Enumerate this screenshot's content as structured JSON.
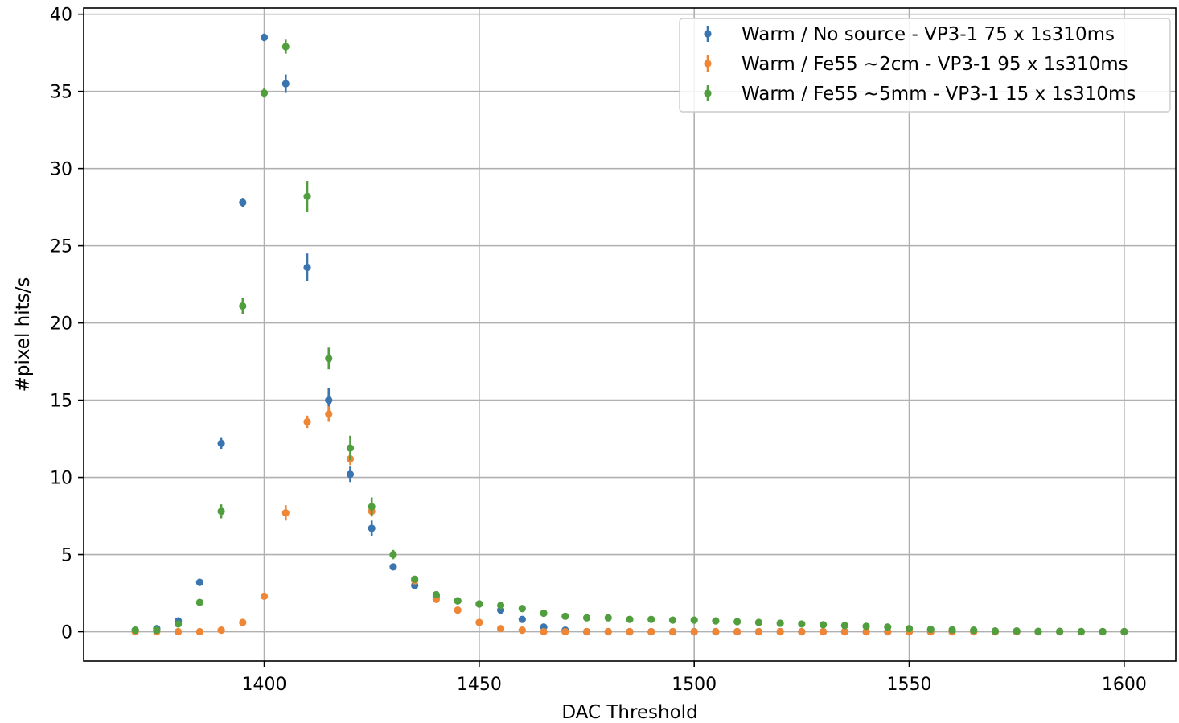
{
  "chart_data": {
    "type": "scatter",
    "xlabel": "DAC Threshold",
    "ylabel": "#pixel hits/s",
    "xlim": [
      1358,
      1612
    ],
    "ylim": [
      -1.9,
      40.4
    ],
    "xticks": [
      1400,
      1450,
      1500,
      1550,
      1600
    ],
    "yticks": [
      0,
      5,
      10,
      15,
      20,
      25,
      30,
      35,
      40
    ],
    "grid": true,
    "legend_position": "top-right",
    "x": [
      1370,
      1375,
      1380,
      1385,
      1390,
      1395,
      1400,
      1405,
      1410,
      1415,
      1420,
      1425,
      1430,
      1435,
      1440,
      1445,
      1450,
      1455,
      1460,
      1465,
      1470,
      1475,
      1480,
      1485,
      1490,
      1495,
      1500,
      1505,
      1510,
      1515,
      1520,
      1525,
      1530,
      1535,
      1540,
      1545,
      1550,
      1555,
      1560,
      1565,
      1570,
      1575,
      1580,
      1585,
      1590,
      1595,
      1600
    ],
    "series": [
      {
        "name": "Warm / No source - VP3-1 75 x 1s310ms",
        "color": "#3a75b0",
        "values": [
          0.1,
          0.2,
          0.7,
          3.2,
          12.2,
          27.8,
          38.5,
          35.5,
          23.6,
          15.0,
          10.2,
          6.7,
          4.2,
          3.0,
          2.3,
          2.0,
          1.8,
          1.4,
          0.8,
          0.3,
          0.1,
          0,
          0,
          0,
          0,
          0,
          0,
          0,
          0,
          0,
          0,
          0,
          0,
          0,
          0,
          0,
          0,
          0,
          0,
          0,
          0,
          0,
          0,
          0,
          0,
          0,
          0
        ],
        "errors": [
          0.05,
          0.1,
          0.15,
          0.2,
          0.35,
          0.3,
          0.25,
          0.6,
          0.9,
          0.8,
          0.5,
          0.5,
          0.2,
          0.2,
          0.15,
          0.15,
          0.15,
          0.1,
          0.1,
          0.05,
          0.05,
          0,
          0,
          0,
          0,
          0,
          0,
          0,
          0,
          0,
          0,
          0,
          0,
          0,
          0,
          0,
          0,
          0,
          0,
          0,
          0,
          0,
          0,
          0,
          0,
          0,
          0
        ]
      },
      {
        "name": "Warm / Fe55 ~2cm - VP3-1 95 x 1s310ms",
        "color": "#ef8636",
        "values": [
          0,
          0,
          0,
          0,
          0.1,
          0.6,
          2.3,
          7.7,
          13.6,
          14.1,
          11.2,
          7.8,
          5.0,
          3.3,
          2.1,
          1.4,
          0.6,
          0.2,
          0.1,
          0,
          0,
          0,
          0,
          0,
          0,
          0,
          0,
          0,
          0,
          0,
          0,
          0,
          0,
          0,
          0,
          0,
          0,
          0,
          0,
          0,
          0,
          0,
          0,
          0,
          0,
          0,
          0
        ],
        "errors": [
          0,
          0,
          0,
          0,
          0.05,
          0.1,
          0.2,
          0.5,
          0.4,
          0.5,
          0.4,
          0.35,
          0.25,
          0.2,
          0.15,
          0.1,
          0.1,
          0.05,
          0.05,
          0,
          0,
          0,
          0,
          0,
          0,
          0,
          0,
          0,
          0,
          0,
          0,
          0,
          0,
          0,
          0,
          0,
          0,
          0,
          0,
          0,
          0,
          0,
          0,
          0,
          0,
          0,
          0
        ]
      },
      {
        "name": "Warm / Fe55 ~5mm - VP3-1 15 x 1s310ms",
        "color": "#519e3e",
        "values": [
          0.1,
          0.1,
          0.5,
          1.9,
          7.8,
          21.1,
          34.9,
          37.9,
          28.2,
          17.7,
          11.9,
          8.1,
          5.0,
          3.4,
          2.4,
          2.0,
          1.8,
          1.7,
          1.5,
          1.2,
          1.0,
          0.9,
          0.9,
          0.8,
          0.8,
          0.75,
          0.75,
          0.7,
          0.65,
          0.6,
          0.55,
          0.5,
          0.45,
          0.4,
          0.35,
          0.3,
          0.2,
          0.15,
          0.12,
          0.1,
          0.05,
          0.05,
          0.02,
          0.02,
          0.01,
          0.01,
          0.01
        ],
        "errors": [
          0.05,
          0.05,
          0.1,
          0.2,
          0.45,
          0.5,
          0.3,
          0.45,
          1.0,
          0.7,
          0.8,
          0.6,
          0.3,
          0.2,
          0.15,
          0.15,
          0.15,
          0.1,
          0.1,
          0.1,
          0.1,
          0.05,
          0.05,
          0.05,
          0.05,
          0.05,
          0.05,
          0.05,
          0.05,
          0.05,
          0.05,
          0.05,
          0.05,
          0.05,
          0.05,
          0.05,
          0.05,
          0.05,
          0.05,
          0.05,
          0.05,
          0.05,
          0.05,
          0.05,
          0.05,
          0.05,
          0.05
        ]
      }
    ]
  }
}
